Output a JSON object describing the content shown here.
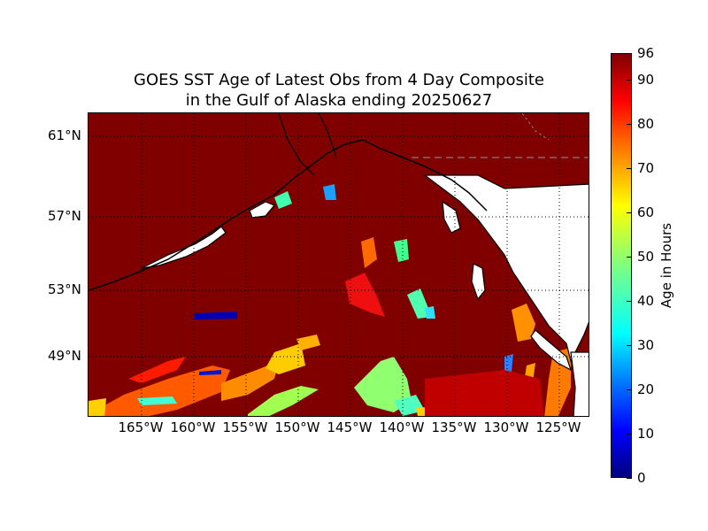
{
  "chart_data": {
    "type": "heatmap",
    "title_lines": [
      "GOES SST Age of Latest Obs from 4 Day Composite",
      "in the Gulf of Alaska ending 20250627"
    ],
    "x_tick_labels": [
      "165°W",
      "160°W",
      "155°W",
      "150°W",
      "145°W",
      "140°W",
      "135°W",
      "130°W",
      "125°W"
    ],
    "x_ticks_lon": [
      -165,
      -160,
      -155,
      -150,
      -145,
      -140,
      -135,
      -130,
      -125
    ],
    "y_tick_labels": [
      "61°N",
      "57°N",
      "53°N",
      "49°N"
    ],
    "y_ticks_lat": [
      61,
      57,
      53,
      49
    ],
    "lon_range": [
      -170,
      -122
    ],
    "lat_range": [
      46,
      62
    ],
    "grid": true,
    "colorbar": {
      "label": "Age in Hours",
      "range": [
        0,
        96
      ],
      "tick_values": [
        0,
        10,
        20,
        30,
        40,
        50,
        60,
        70,
        80,
        90,
        96
      ],
      "colormap": "jet"
    },
    "colors": {
      "background_ocean_age_96": "#800000",
      "land": "#ffffff",
      "coastline": "#000000",
      "gridline": "#000000",
      "border": "#808080"
    }
  }
}
